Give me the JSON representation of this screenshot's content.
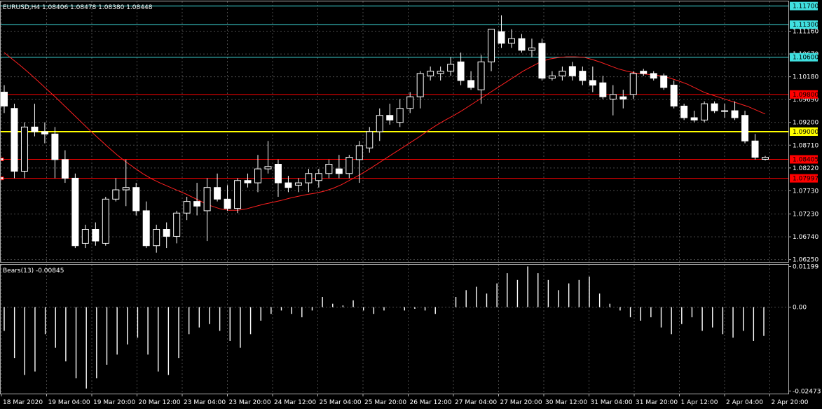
{
  "header": {
    "symbol_info": "EURUSD,H4  1.08406 1.08478 1.08380 1.08448"
  },
  "indicator": {
    "label": "Bears(13) -0.00845"
  },
  "colors": {
    "background": "#000000",
    "grid": "#4a4a4a",
    "candle": "#ffffff",
    "ma_line": "#ff2020",
    "red_level": "#ff0000",
    "cyan_level": "#40e0e0",
    "yellow_level": "#ffff00",
    "histogram": "#ffffff"
  },
  "chart_data": [
    {
      "type": "candlestick",
      "title": "EURUSD,H4",
      "ylim": [
        1.062,
        1.118
      ],
      "y_ticks": [
        "1.11160",
        "1.10670",
        "1.10180",
        "1.09690",
        "1.09200",
        "1.08710",
        "1.08220",
        "1.07730",
        "1.07230",
        "1.06740",
        "1.06250"
      ],
      "x_labels": [
        "18 Mar 2020",
        "19 Mar 04:00",
        "19 Mar 20:00",
        "20 Mar 12:00",
        "23 Mar 04:00",
        "23 Mar 20:00",
        "24 Mar 12:00",
        "25 Mar 04:00",
        "25 Mar 20:00",
        "26 Mar 12:00",
        "27 Mar 04:00",
        "27 Mar 20:00",
        "30 Mar 12:00",
        "31 Mar 04:00",
        "31 Mar 20:00",
        "1 Apr 12:00",
        "2 Apr 04:00",
        "2 Apr 20:00"
      ],
      "levels": [
        {
          "label": "1.11700",
          "value": 1.117,
          "color": "cyan"
        },
        {
          "label": "1.11300",
          "value": 1.113,
          "color": "cyan"
        },
        {
          "label": "1.10600",
          "value": 1.106,
          "color": "cyan"
        },
        {
          "label": "1.09800",
          "value": 1.098,
          "color": "red"
        },
        {
          "label": "1.09000",
          "value": 1.09,
          "color": "yellow"
        },
        {
          "label": "1.08405",
          "value": 1.08405,
          "color": "red"
        },
        {
          "label": "1.07997",
          "value": 1.07997,
          "color": "red"
        }
      ],
      "candles": [
        [
          1.0985,
          1.1,
          1.094,
          1.0955
        ],
        [
          1.095,
          1.096,
          1.08,
          1.0815
        ],
        [
          1.0815,
          1.092,
          1.08,
          1.091
        ],
        [
          1.091,
          1.096,
          1.089,
          1.09
        ],
        [
          1.09,
          1.092,
          1.0875,
          1.0895
        ],
        [
          1.0895,
          1.091,
          1.08,
          1.084
        ],
        [
          1.084,
          1.086,
          1.079,
          1.08
        ],
        [
          1.08,
          1.081,
          1.065,
          1.0655
        ],
        [
          1.066,
          1.07,
          1.065,
          1.069
        ],
        [
          1.069,
          1.0705,
          1.0655,
          1.0665
        ],
        [
          1.066,
          1.076,
          1.0655,
          1.0755
        ],
        [
          1.0755,
          1.08,
          1.075,
          1.0775
        ],
        [
          1.0775,
          1.084,
          1.074,
          1.078
        ],
        [
          1.078,
          1.079,
          1.072,
          1.073
        ],
        [
          1.073,
          1.075,
          1.065,
          1.0655
        ],
        [
          1.0655,
          1.07,
          1.064,
          1.069
        ],
        [
          1.069,
          1.0705,
          1.065,
          1.0675
        ],
        [
          1.0675,
          1.073,
          1.066,
          1.0725
        ],
        [
          1.0725,
          1.076,
          1.071,
          1.075
        ],
        [
          1.075,
          1.079,
          1.072,
          1.074
        ],
        [
          1.073,
          1.08,
          1.0665,
          1.078
        ],
        [
          1.078,
          1.081,
          1.075,
          1.0755
        ],
        [
          1.0755,
          1.0785,
          1.073,
          1.0735
        ],
        [
          1.0735,
          1.08,
          1.0725,
          1.0795
        ],
        [
          1.0795,
          1.081,
          1.078,
          1.079
        ],
        [
          1.079,
          1.085,
          1.077,
          1.082
        ],
        [
          1.082,
          1.088,
          1.081,
          1.0825
        ],
        [
          1.083,
          1.084,
          1.076,
          1.079
        ],
        [
          1.079,
          1.0805,
          1.077,
          1.078
        ],
        [
          1.0785,
          1.08,
          1.077,
          1.079
        ],
        [
          1.079,
          1.082,
          1.077,
          1.081
        ],
        [
          1.0795,
          1.082,
          1.078,
          1.081
        ],
        [
          1.081,
          1.084,
          1.08,
          1.083
        ],
        [
          1.082,
          1.085,
          1.08,
          1.081
        ],
        [
          1.081,
          1.085,
          1.08,
          1.0845
        ],
        [
          1.084,
          1.088,
          1.079,
          1.087
        ],
        [
          1.0865,
          1.091,
          1.0855,
          1.09
        ],
        [
          1.09,
          1.095,
          1.088,
          1.0935
        ],
        [
          1.0935,
          1.096,
          1.0915,
          1.0925
        ],
        [
          1.092,
          1.097,
          1.091,
          1.095
        ],
        [
          1.095,
          1.0985,
          1.094,
          1.0975
        ],
        [
          1.0975,
          1.103,
          1.095,
          1.1025
        ],
        [
          1.102,
          1.104,
          1.101,
          1.103
        ],
        [
          1.1025,
          1.104,
          1.101,
          1.103
        ],
        [
          1.103,
          1.106,
          1.102,
          1.1045
        ],
        [
          1.105,
          1.107,
          1.1,
          1.101
        ],
        [
          1.101,
          1.103,
          1.099,
          1.0995
        ],
        [
          1.099,
          1.1065,
          1.096,
          1.105
        ],
        [
          1.105,
          1.112,
          1.103,
          1.112
        ],
        [
          1.1115,
          1.115,
          1.108,
          1.109
        ],
        [
          1.109,
          1.112,
          1.108,
          1.11
        ],
        [
          1.11,
          1.111,
          1.107,
          1.1075
        ],
        [
          1.1075,
          1.11,
          1.106,
          1.108
        ],
        [
          1.109,
          1.11,
          1.101,
          1.1015
        ],
        [
          1.1015,
          1.103,
          1.101,
          1.102
        ],
        [
          1.102,
          1.104,
          1.101,
          1.103
        ],
        [
          1.104,
          1.105,
          1.101,
          1.102
        ],
        [
          1.103,
          1.104,
          1.1,
          1.101
        ],
        [
          1.101,
          1.104,
          1.0985,
          1.1
        ],
        [
          1.1005,
          1.102,
          1.097,
          1.0975
        ],
        [
          1.097,
          1.1,
          1.0935,
          1.098
        ],
        [
          1.0975,
          1.099,
          1.095,
          1.097
        ],
        [
          1.098,
          1.103,
          1.097,
          1.1025
        ],
        [
          1.103,
          1.1035,
          1.102,
          1.1025
        ],
        [
          1.1025,
          1.103,
          1.101,
          1.1015
        ],
        [
          1.102,
          1.1025,
          1.099,
          1.0995
        ],
        [
          1.1,
          1.101,
          1.095,
          1.0955
        ],
        [
          1.0955,
          1.096,
          1.0925,
          1.093
        ],
        [
          1.093,
          1.0945,
          1.092,
          1.0925
        ],
        [
          1.0925,
          1.0965,
          1.092,
          1.096
        ],
        [
          1.096,
          1.0965,
          1.094,
          1.0945
        ],
        [
          1.0945,
          1.096,
          1.093,
          1.0945
        ],
        [
          1.0945,
          1.0965,
          1.0925,
          1.093
        ],
        [
          1.0935,
          1.0945,
          1.0875,
          1.088
        ],
        [
          1.088,
          1.0895,
          1.084,
          1.0845
        ],
        [
          1.08406,
          1.08478,
          1.0838,
          1.08448
        ]
      ],
      "moving_average": [
        1.107,
        1.1055,
        1.104,
        1.1024,
        1.1007,
        1.099,
        1.0973,
        1.0955,
        1.0937,
        1.0919,
        1.0901,
        1.0884,
        1.0867,
        1.0851,
        1.0836,
        1.0823,
        1.081,
        1.0799,
        1.079,
        1.0782,
        1.0774,
        1.0766,
        1.0757,
        1.0748,
        1.074,
        1.0734,
        1.0731,
        1.0731,
        1.0734,
        1.0739,
        1.0744,
        1.0748,
        1.0752,
        1.0757,
        1.0761,
        1.0765,
        1.0768,
        1.0772,
        1.0778,
        1.0786,
        1.0796,
        1.0806,
        1.0817,
        1.0829,
        1.0841,
        1.0853,
        1.0865,
        1.0877,
        1.0889,
        1.0902,
        1.0914,
        1.0925,
        1.0935,
        1.0946,
        1.0958,
        1.097,
        1.0982,
        1.0994,
        1.1006,
        1.1018,
        1.103,
        1.104,
        1.105,
        1.1056,
        1.1059,
        1.1061,
        1.1061,
        1.106,
        1.1055,
        1.1049,
        1.1042,
        1.1035,
        1.103,
        1.1026,
        1.1024,
        1.1022,
        1.102,
        1.1015,
        1.1009,
        1.1002,
        1.0993,
        1.0984,
        1.0978,
        1.0972,
        1.0966,
        1.096,
        1.0954,
        1.0946,
        1.0938
      ]
    },
    {
      "type": "bar",
      "title": "Bears(13) -0.00845",
      "ylim": [
        -0.0255,
        0.0125
      ],
      "y_ticks": [
        "0.01199",
        "0.00",
        "-0.02473"
      ],
      "values": [
        -0.007,
        -0.015,
        -0.02,
        -0.019,
        -0.008,
        -0.012,
        -0.016,
        -0.021,
        -0.024,
        -0.021,
        -0.017,
        -0.014,
        -0.011,
        -0.009,
        -0.014,
        -0.019,
        -0.02,
        -0.015,
        -0.008,
        -0.006,
        -0.005,
        -0.007,
        -0.01,
        -0.012,
        -0.008,
        -0.004,
        -0.002,
        -0.001,
        -0.002,
        -0.003,
        -0.001,
        0.003,
        0.001,
        0.0005,
        0.002,
        -0.001,
        -0.002,
        -0.001,
        0.0,
        -0.001,
        -0.0005,
        -0.001,
        -0.002,
        0.0,
        0.003,
        0.005,
        0.006,
        0.004,
        0.007,
        0.01,
        0.008,
        0.012,
        0.01,
        0.008,
        0.005,
        0.007,
        0.008,
        0.009,
        0.004,
        0.001,
        -0.001,
        -0.003,
        -0.004,
        -0.003,
        -0.006,
        -0.008,
        -0.005,
        -0.003,
        -0.007,
        -0.006,
        -0.008,
        -0.009,
        -0.007,
        -0.01,
        -0.0085
      ]
    }
  ]
}
